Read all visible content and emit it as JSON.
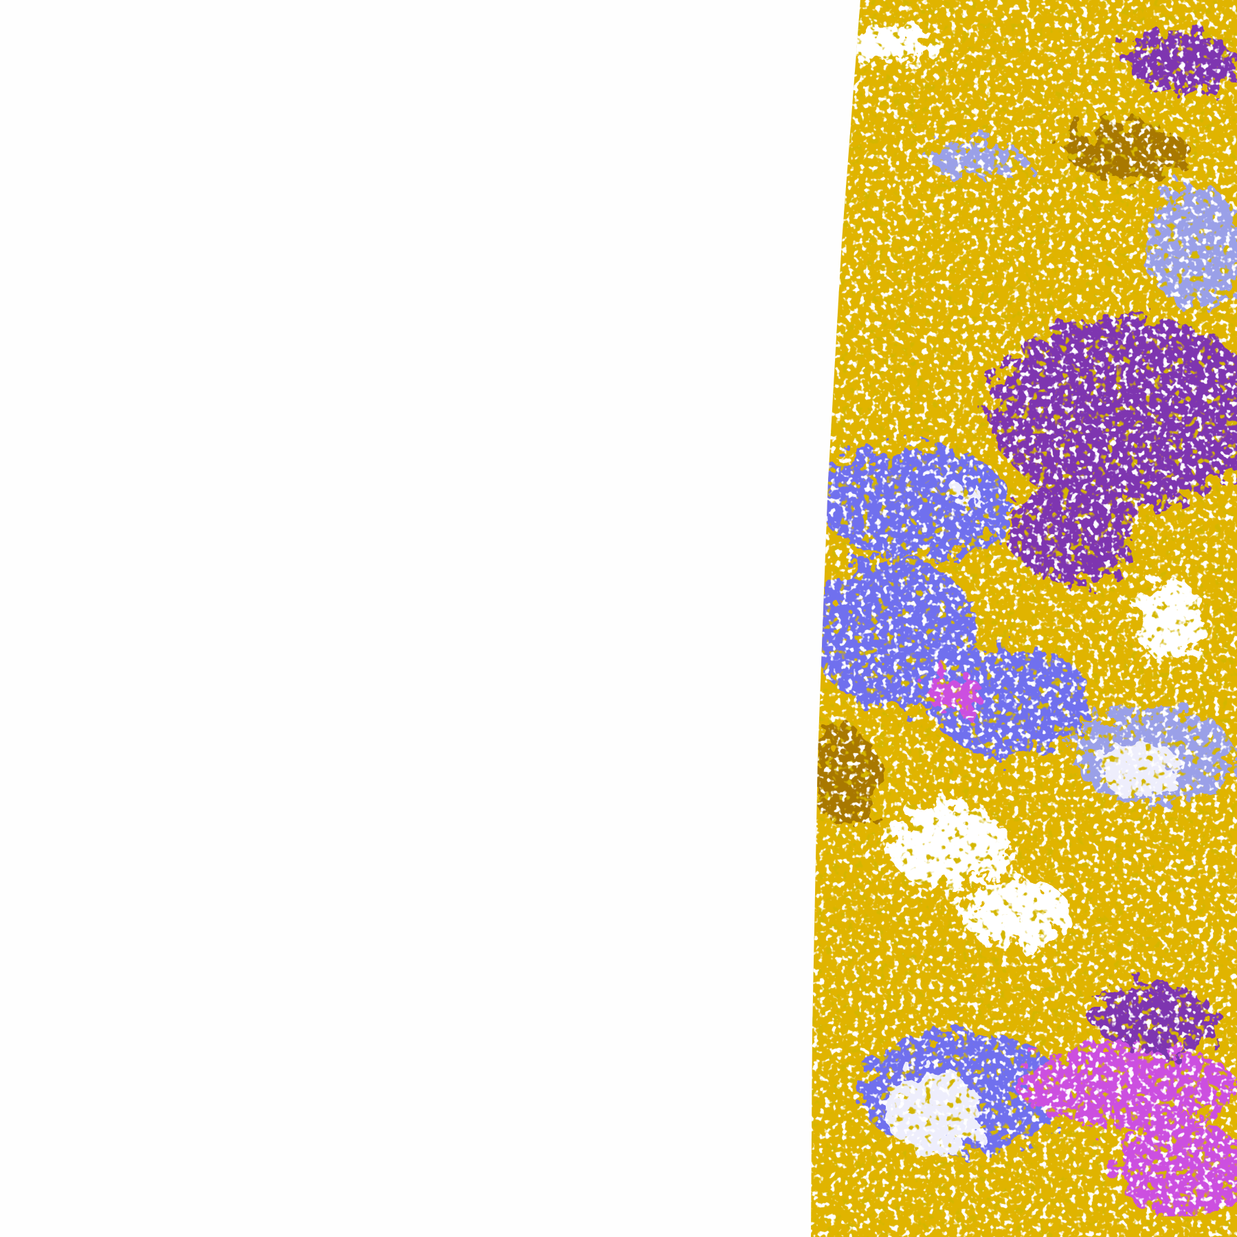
{
  "image": {
    "kind": "false-color satellite swath",
    "colors": {
      "background": "#fefefe",
      "base_gold": "#e0b400",
      "dark_gold": "#a87800",
      "purple": "#7e35b0",
      "blue": "#7070ee",
      "light_blue": "#9aa0e8",
      "magenta": "#cc50e0",
      "pale": "#eeeefc",
      "clear": "#ffffff"
    }
  }
}
